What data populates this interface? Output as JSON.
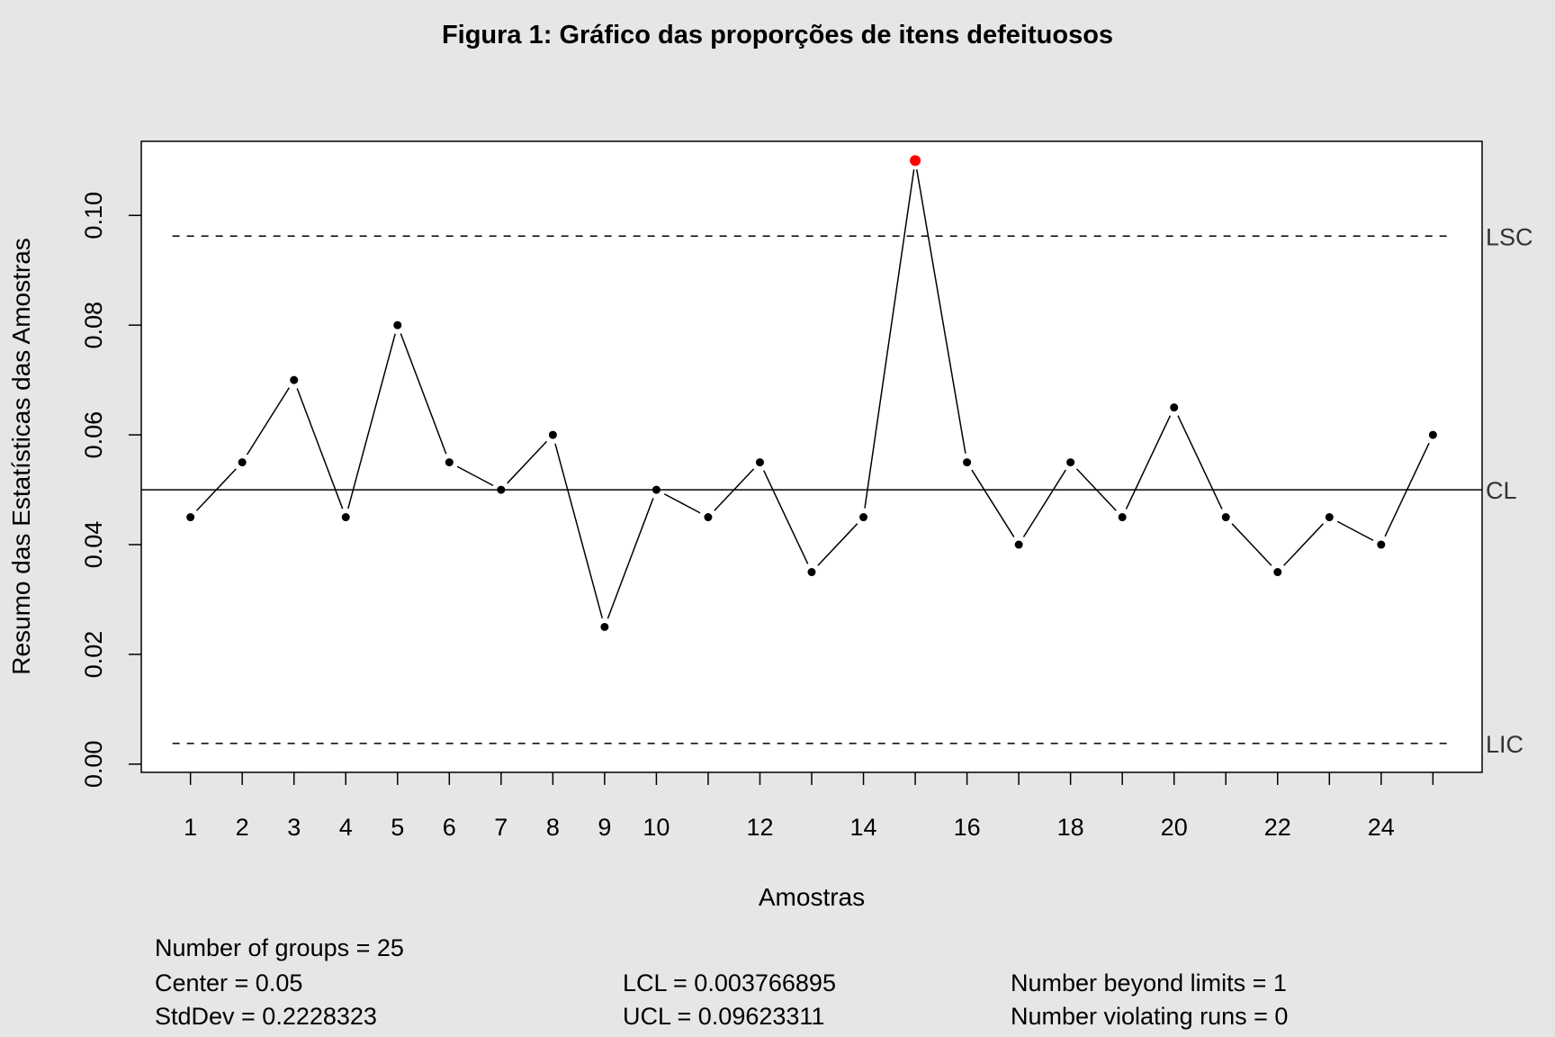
{
  "chart_data": {
    "type": "line",
    "title": "Figura 1: Gráfico das proporções de itens defeituosos",
    "xlabel": "Amostras",
    "ylabel": "Resumo das Estatísticas das Amostras",
    "x": [
      1,
      2,
      3,
      4,
      5,
      6,
      7,
      8,
      9,
      10,
      11,
      12,
      13,
      14,
      15,
      16,
      17,
      18,
      19,
      20,
      21,
      22,
      23,
      24,
      25
    ],
    "values": [
      0.045,
      0.055,
      0.07,
      0.045,
      0.08,
      0.055,
      0.05,
      0.06,
      0.025,
      0.05,
      0.045,
      0.055,
      0.035,
      0.045,
      0.11,
      0.055,
      0.04,
      0.055,
      0.045,
      0.065,
      0.045,
      0.035,
      0.045,
      0.04,
      0.06
    ],
    "beyond_limits_index": [
      15
    ],
    "xlim": [
      0.05,
      25.95
    ],
    "ylim": [
      -0.0015,
      0.1135
    ],
    "yticks": [
      0.0,
      0.02,
      0.04,
      0.06,
      0.08,
      0.1
    ],
    "ytick_labels": [
      "0.00",
      "0.02",
      "0.04",
      "0.06",
      "0.08",
      "0.10"
    ],
    "xtick_labels": [
      "1",
      "2",
      "3",
      "4",
      "5",
      "6",
      "7",
      "8",
      "9",
      "10",
      "12",
      "14",
      "16",
      "18",
      "20",
      "22",
      "24"
    ],
    "xtick_label_positions": [
      1,
      2,
      3,
      4,
      5,
      6,
      7,
      8,
      9,
      10,
      12,
      14,
      16,
      18,
      20,
      22,
      24
    ],
    "center": 0.05,
    "lcl": 0.003766895,
    "ucl": 0.09623311,
    "limit_labels": {
      "ucl": "LSC",
      "center": "CL",
      "lcl": "LIC"
    },
    "colors": {
      "point": "#000000",
      "violation": "#ff0000",
      "limit_label": "#333333",
      "background": "#e6e6e6",
      "panel": "#ffffff"
    }
  },
  "stats": {
    "groups": "Number of groups = 25",
    "center": "Center = 0.05",
    "stddev": "StdDev = 0.2228323",
    "lcl": "LCL = 0.003766895",
    "ucl": "UCL = 0.09623311",
    "beyond": "Number beyond limits = 1",
    "runs": "Number violating runs = 0"
  }
}
